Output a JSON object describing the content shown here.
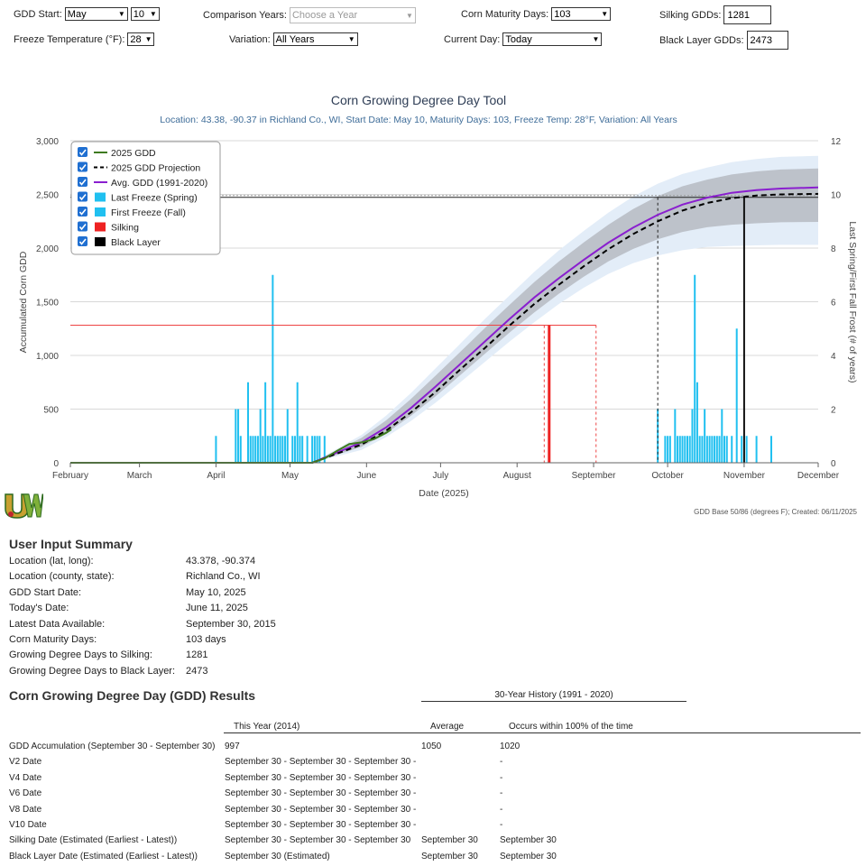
{
  "controls": {
    "gdd_start_label": "GDD Start:",
    "gdd_start_month": "May",
    "gdd_start_day": "10",
    "comparison_years_label": "Comparison Years:",
    "comparison_years_placeholder": "Choose a Year",
    "corn_maturity_label": "Corn Maturity Days:",
    "corn_maturity_value": "103",
    "silking_gdds_label": "Silking GDDs:",
    "silking_gdds_value": "1281",
    "freeze_temp_label": "Freeze Temperature (°F):",
    "freeze_temp_value": "28",
    "variation_label": "Variation:",
    "variation_value": "All Years",
    "current_day_label": "Current Day:",
    "current_day_value": "Today",
    "black_layer_label": "Black Layer GDDs:",
    "black_layer_value": "2473"
  },
  "chart_data": {
    "type": "line",
    "title": "Corn Growing Degree Day Tool",
    "subtitle": "Location: 43.38, -90.37 in Richland Co., WI, Start Date: May 10, Maturity Days: 103, Freeze Temp: 28°F, Variation: All Years",
    "xlabel": "Date (2025)",
    "ylabel": "Accumulated Corn GDD",
    "y2label": "Last Spring/First Fall Frost (# of years)",
    "x_tick_labels": [
      "February",
      "March",
      "April",
      "May",
      "June",
      "July",
      "August",
      "September",
      "October",
      "November",
      "December"
    ],
    "x_tick_days": [
      32,
      60,
      91,
      121,
      152,
      182,
      213,
      244,
      274,
      305,
      335
    ],
    "xlim": [
      32,
      335
    ],
    "y_ticks": [
      0,
      500,
      1000,
      1500,
      2000,
      2500,
      3000
    ],
    "y_tick_labels": [
      "0",
      "500",
      "1,000",
      "1,500",
      "2,000",
      "2,500",
      "3,000"
    ],
    "ylim": [
      0,
      3000
    ],
    "y2_ticks": [
      0,
      2,
      4,
      6,
      8,
      10,
      12
    ],
    "y2lim": [
      0,
      12
    ],
    "legend": [
      {
        "name": "2025 GDD",
        "color": "#3d7a1f",
        "style": "line",
        "checked": true
      },
      {
        "name": "2025 GDD Projection",
        "color": "#000000",
        "style": "dashed",
        "checked": true
      },
      {
        "name": "Avg. GDD (1991-2020)",
        "color": "#8a1fcf",
        "style": "line",
        "checked": true
      },
      {
        "name": "Last Freeze (Spring)",
        "color": "#20c0f0",
        "style": "box",
        "checked": true
      },
      {
        "name": "First Freeze (Fall)",
        "color": "#20c0f0",
        "style": "box",
        "checked": true
      },
      {
        "name": "Silking",
        "color": "#ee2222",
        "style": "box",
        "checked": true
      },
      {
        "name": "Black Layer",
        "color": "#000000",
        "style": "box",
        "checked": true
      }
    ],
    "series": [
      {
        "name": "2025 GDD",
        "x": [
          121,
          130,
          135,
          140,
          145,
          150,
          155,
          160,
          162
        ],
        "values": [
          0,
          0,
          40,
          110,
          175,
          190,
          220,
          280,
          310
        ]
      },
      {
        "name": "2025 GDD Projection",
        "x": [
          130,
          150,
          160,
          170,
          180,
          190,
          200,
          210,
          220,
          230,
          240,
          250,
          260,
          270,
          280,
          290,
          300,
          310,
          320,
          335
        ],
        "values": [
          0,
          170,
          300,
          470,
          660,
          870,
          1070,
          1280,
          1480,
          1660,
          1830,
          1990,
          2130,
          2250,
          2350,
          2420,
          2465,
          2490,
          2500,
          2505
        ]
      },
      {
        "name": "Avg. GDD (1991-2020)",
        "x": [
          130,
          150,
          160,
          170,
          180,
          190,
          200,
          210,
          220,
          230,
          240,
          250,
          260,
          270,
          280,
          290,
          300,
          310,
          320,
          335
        ],
        "values": [
          0,
          190,
          330,
          510,
          710,
          920,
          1130,
          1340,
          1540,
          1720,
          1890,
          2050,
          2190,
          2310,
          2405,
          2470,
          2515,
          2540,
          2555,
          2565
        ]
      },
      {
        "name": "Range Upper",
        "x": [
          130,
          150,
          160,
          170,
          180,
          190,
          200,
          210,
          220,
          230,
          240,
          250,
          260,
          270,
          280,
          290,
          300,
          310,
          320,
          335
        ],
        "values": [
          0,
          260,
          440,
          650,
          880,
          1110,
          1340,
          1560,
          1780,
          1980,
          2160,
          2330,
          2480,
          2600,
          2690,
          2750,
          2800,
          2830,
          2850,
          2860
        ]
      },
      {
        "name": "Range Lower",
        "x": [
          130,
          150,
          160,
          170,
          180,
          190,
          200,
          210,
          220,
          230,
          240,
          250,
          260,
          270,
          280,
          290,
          300,
          310,
          320,
          335
        ],
        "values": [
          0,
          120,
          240,
          390,
          560,
          750,
          940,
          1130,
          1310,
          1480,
          1630,
          1760,
          1860,
          1930,
          1980,
          2010,
          2020,
          2025,
          2030,
          2030
        ]
      }
    ],
    "last_freeze_spring": {
      "days": [
        91,
        99,
        100,
        101,
        104,
        105,
        106,
        107,
        108,
        109,
        110,
        111,
        112,
        113,
        114,
        115,
        116,
        117,
        118,
        119,
        120,
        122,
        123,
        124,
        125,
        126,
        128,
        130,
        131,
        132,
        133,
        135
      ],
      "counts": [
        1,
        2,
        2,
        1,
        3,
        1,
        1,
        1,
        1,
        2,
        1,
        3,
        1,
        1,
        7,
        1,
        1,
        1,
        1,
        1,
        2,
        1,
        1,
        3,
        1,
        1,
        1,
        1,
        1,
        1,
        1,
        1
      ]
    },
    "first_freeze_fall": {
      "days": [
        270,
        273,
        274,
        275,
        277,
        278,
        279,
        280,
        281,
        282,
        283,
        284,
        285,
        286,
        287,
        288,
        289,
        290,
        291,
        292,
        293,
        294,
        295,
        296,
        297,
        298,
        300,
        302,
        304,
        306,
        310,
        316
      ],
      "counts": [
        2,
        1,
        1,
        1,
        2,
        1,
        1,
        1,
        1,
        1,
        1,
        2,
        7,
        3,
        1,
        1,
        2,
        1,
        1,
        1,
        1,
        1,
        1,
        2,
        1,
        1,
        1,
        5,
        1,
        1,
        1,
        1
      ]
    },
    "silking": {
      "gdd": 1281,
      "date_day": 226,
      "earliest_day": 224,
      "latest_day": 245
    },
    "black_layer": {
      "gdd": 2473,
      "date_day": 305,
      "earliest_day": 270
    }
  },
  "credit": "GDD Base 50/86 (degrees F); Created: 06/11/2025",
  "summary": {
    "title": "User Input Summary",
    "rows": [
      {
        "label": "Location (lat, long):",
        "value": "43.378, -90.374"
      },
      {
        "label": "Location (county, state):",
        "value": "Richland Co., WI"
      },
      {
        "label": "GDD Start Date:",
        "value": "May 10, 2025"
      },
      {
        "label": "Today's Date:",
        "value": "June 11, 2025"
      },
      {
        "label": "Latest Data Available:",
        "value": "September 30, 2015"
      },
      {
        "label": "Corn Maturity Days:",
        "value": "103 days"
      },
      {
        "label": "Growing Degree Days to Silking:",
        "value": "1281"
      },
      {
        "label": "Growing Degree Days to Black Layer:",
        "value": "2473"
      }
    ]
  },
  "results": {
    "title": "Corn Growing Degree Day (GDD) Results",
    "history_header": "30-Year History (1991 - 2020)",
    "col_this_year": "This Year (2014)",
    "col_average": "Average",
    "col_occurs": "Occurs within 100% of the time",
    "rows": [
      {
        "label": "GDD Accumulation (September 30 - September 30)",
        "this_year": "997",
        "average": "1050",
        "occurs": "1020"
      },
      {
        "label": "V2 Date",
        "this_year": "September 30 - September 30 - September 30 -",
        "average": "",
        "occurs": "-"
      },
      {
        "label": "V4 Date",
        "this_year": "September 30 - September 30 - September 30 -",
        "average": "",
        "occurs": "-"
      },
      {
        "label": "V6 Date",
        "this_year": "September 30 - September 30 - September 30 -",
        "average": "",
        "occurs": "-"
      },
      {
        "label": "V8 Date",
        "this_year": "September 30 - September 30 - September 30 -",
        "average": "",
        "occurs": "-"
      },
      {
        "label": "V10 Date",
        "this_year": "September 30 - September 30 - September 30 -",
        "average": "",
        "occurs": "-"
      },
      {
        "label": "Silking Date (Estimated (Earliest - Latest))",
        "this_year": "September 30 - September 30 - September 30",
        "average": "September 30",
        "occurs": "September 30"
      },
      {
        "label": "Black Layer Date (Estimated (Earliest - Latest))",
        "this_year": "September 30 (Estimated)",
        "average": "September 30",
        "occurs": "September 30"
      }
    ]
  }
}
